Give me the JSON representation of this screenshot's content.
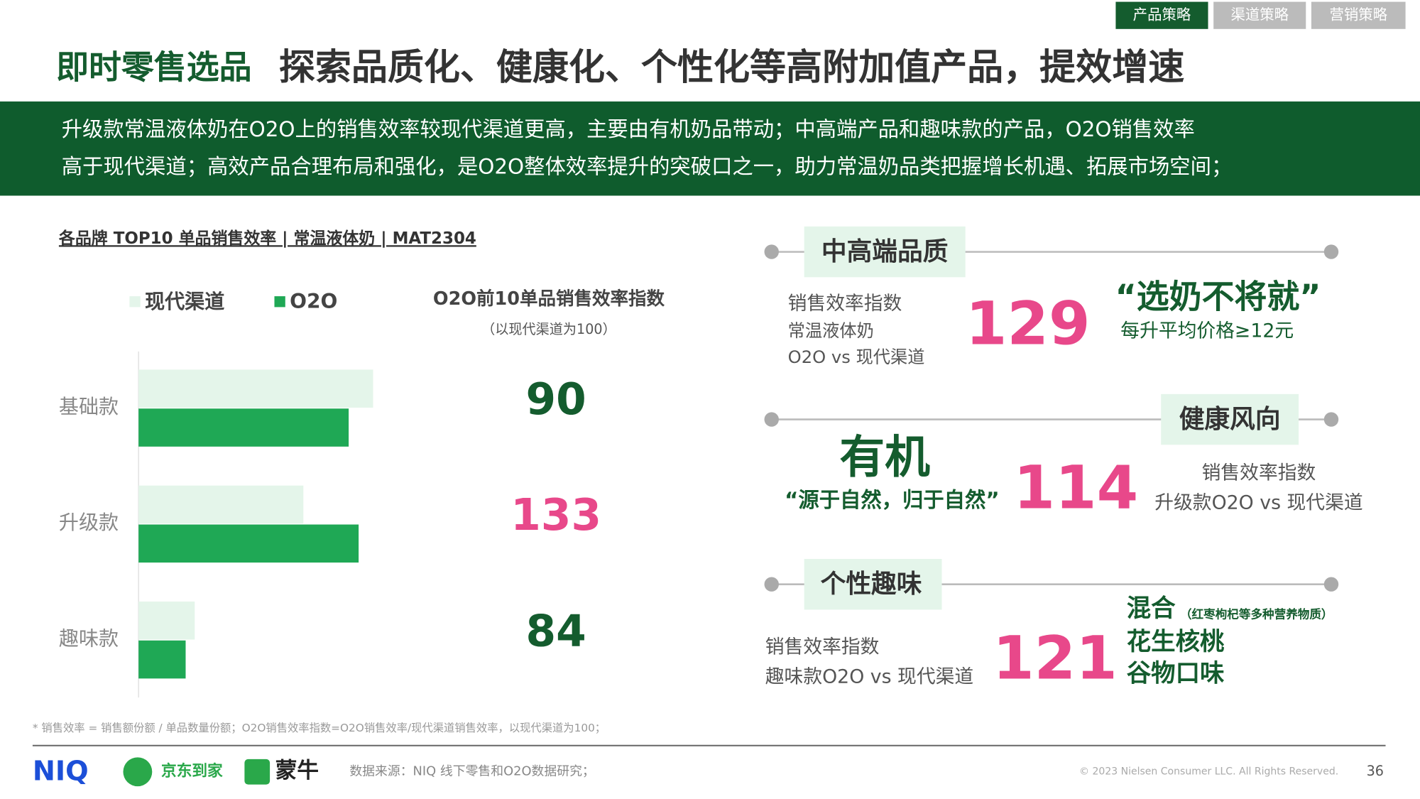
{
  "tabs": [
    "产品策略",
    "渠道策略",
    "营销策略"
  ],
  "title": {
    "lead": "即时零售选品",
    "main": "探索品质化、健康化、个性化等高附加值产品，提效增速"
  },
  "banner": [
    "升级款常温液体奶在O2O上的销售效率较现代渠道更高，主要由有机奶品带动；中高端产品和趣味款的产品，O2O销售效率",
    "高于现代渠道；高效产品合理布局和强化，是O2O整体效率提升的突破口之一，助力常温奶品类把握增长机遇、拓展市场空间；"
  ],
  "chart_data": {
    "type": "hbar",
    "title": "各品牌 TOP10 单品销售效率 | 常温液体奶 | MAT2304",
    "categories": [
      "基础款",
      "升级款",
      "趣味款"
    ],
    "series": [
      {
        "name": "现代渠道",
        "color": "#e4f5ea",
        "values": [
          259,
          182,
          62
        ]
      },
      {
        "name": "O2O",
        "color": "#1fa855",
        "values": [
          232,
          243,
          52
        ]
      }
    ],
    "xlim": [
      0,
      300
    ],
    "index_title": "O2O前10单品销售效率指数",
    "index_subtitle": "（以现代渠道为100）",
    "index_values": [
      90,
      133,
      84
    ],
    "index_colors": [
      "#145c2e",
      "#e8488a",
      "#145c2e"
    ]
  },
  "panels": [
    {
      "heading": "中高端品质",
      "lines": [
        "销售效率指数",
        "常温液体奶",
        "O2O vs 现代渠道"
      ],
      "value": 129,
      "slogan": "“选奶不将就”",
      "note": "每升平均价格≥12元"
    },
    {
      "heading": "健康风向",
      "big": "有机",
      "slogan": "“源于自然，归于自然”",
      "value": 114,
      "lines": [
        "销售效率指数",
        "升级款O2O vs 现代渠道"
      ]
    },
    {
      "heading": "个性趣味",
      "lines": [
        "销售效率指数",
        "趣味款O2O vs 现代渠道"
      ],
      "value": 121,
      "items": [
        "混合",
        "花生核桃",
        "谷物口味"
      ],
      "item_note": "（红枣枸杞等多种营养物质）"
    }
  ],
  "footnote": "* 销售效率 = 销售额份额 / 单品数量份额；O2O销售效率指数=O2O销售效率/现代渠道销售效率，以现代渠道为100；",
  "footer": {
    "logos": [
      "NIQ",
      "京东到家",
      "蒙牛"
    ],
    "source": "数据来源：NIQ 线下零售和O2O数据研究；",
    "copyright": "© 2023 Nielsen Consumer LLC. All Rights Reserved.",
    "page": 36
  }
}
